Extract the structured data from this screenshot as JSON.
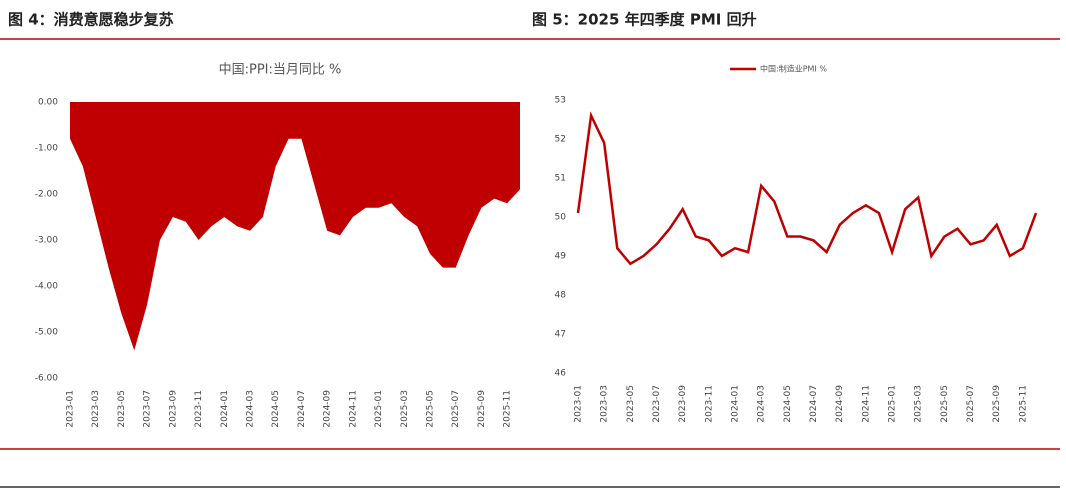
{
  "captions": [
    "图 4：消费意愿稳步复苏",
    "图 5：2025 年四季度 PMI 回升"
  ],
  "chart_data": [
    {
      "type": "area",
      "title": "中国:PPI:当月同比 %",
      "color": "#c00000",
      "categories": [
        "2023-01",
        null,
        "2023-03",
        null,
        "2023-05",
        null,
        "2023-07",
        null,
        "2023-09",
        null,
        "2023-11",
        null,
        "2024-01",
        null,
        "2024-03",
        null,
        "2024-05",
        null,
        "2024-07",
        null,
        "2024-09",
        null,
        "2024-11",
        null,
        "2025-01",
        null,
        "2025-03",
        null,
        "2025-05",
        null,
        "2025-07",
        null,
        "2025-09",
        null,
        "2025-11",
        null
      ],
      "values": [
        -0.8,
        -1.4,
        -2.5,
        -3.6,
        -4.6,
        -5.4,
        -4.4,
        -3.0,
        -2.5,
        -2.6,
        -3.0,
        -2.7,
        -2.5,
        -2.7,
        -2.8,
        -2.5,
        -1.4,
        -0.8,
        -0.8,
        -1.8,
        -2.8,
        -2.9,
        -2.5,
        -2.3,
        -2.3,
        -2.2,
        -2.5,
        -2.7,
        -3.3,
        -3.6,
        -3.6,
        -2.9,
        -2.3,
        -2.1,
        -2.2,
        -1.9
      ],
      "ylim": [
        -6,
        0
      ],
      "yticks": [
        {
          "value": 0,
          "label": "0.00"
        },
        {
          "value": -1,
          "label": "-1.00"
        },
        {
          "value": -2,
          "label": "-2.00"
        },
        {
          "value": -3,
          "label": "-3.00"
        },
        {
          "value": -4,
          "label": "-4.00"
        },
        {
          "value": -5,
          "label": "-5.00"
        },
        {
          "value": -6,
          "label": "-6.00"
        }
      ]
    },
    {
      "type": "line",
      "color": "#c00000",
      "categories": [
        "2023-01",
        null,
        "2023-03",
        null,
        "2023-05",
        null,
        "2023-07",
        null,
        "2023-09",
        null,
        "2023-11",
        null,
        "2024-01",
        null,
        "2024-03",
        null,
        "2024-05",
        null,
        "2024-07",
        null,
        "2024-09",
        null,
        "2024-11",
        null,
        "2025-01",
        null,
        "2025-03",
        null,
        "2025-05",
        null,
        "2025-07",
        null,
        "2025-09",
        null,
        "2025-11",
        null
      ],
      "series": [
        {
          "name": "中国:制造业PMI %",
          "color": "#c00000",
          "values": [
            50.1,
            52.6,
            51.9,
            49.2,
            48.8,
            49.0,
            49.3,
            49.7,
            50.2,
            49.5,
            49.4,
            49.0,
            49.2,
            49.1,
            50.8,
            50.4,
            49.5,
            49.5,
            49.4,
            49.1,
            49.8,
            50.1,
            50.3,
            50.1,
            49.1,
            50.2,
            50.5,
            49.0,
            49.5,
            49.7,
            49.3,
            49.4,
            49.8,
            49.0,
            49.2,
            50.1
          ]
        }
      ],
      "ylim": [
        46,
        53
      ],
      "yticks": [
        46,
        47,
        48,
        49,
        50,
        51,
        52,
        53
      ]
    }
  ]
}
